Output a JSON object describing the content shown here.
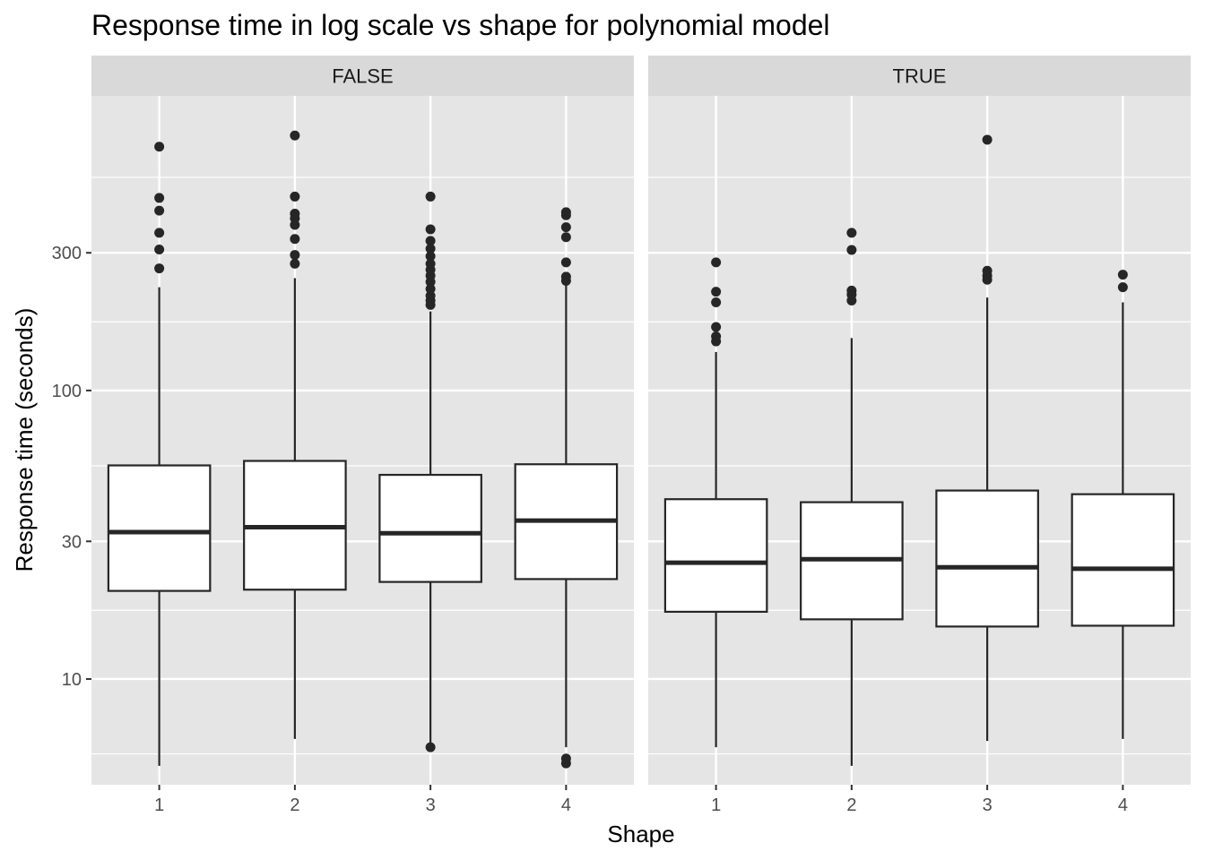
{
  "chart_data": {
    "type": "boxplot",
    "title": "Response time in log scale vs shape for polynomial model",
    "xlabel": "Shape",
    "ylabel": "Response time (seconds)",
    "y_scale": "log10",
    "ylim": [
      4.3,
      1050
    ],
    "y_ticks": [
      10,
      30,
      100,
      300
    ],
    "y_tick_labels": [
      "10",
      "30",
      "100",
      "300"
    ],
    "y_minor_ticks": [
      5.5,
      17.3,
      54.8,
      173,
      548
    ],
    "grid": true,
    "facets": [
      {
        "label": "FALSE",
        "categories": [
          "1",
          "2",
          "3",
          "4"
        ],
        "boxes": [
          {
            "lower_whisker": 5.0,
            "q1": 20.2,
            "median": 32.3,
            "q3": 55.0,
            "upper_whisker": 228,
            "outliers": [
              265,
              308,
              352,
              420,
              465,
              700
            ]
          },
          {
            "lower_whisker": 6.2,
            "q1": 20.4,
            "median": 33.6,
            "q3": 57.0,
            "upper_whisker": 245,
            "outliers": [
              275,
              295,
              335,
              375,
              395,
              410,
              470,
              765
            ]
          },
          {
            "lower_whisker": 5.8,
            "q1": 21.7,
            "median": 32.0,
            "q3": 51.0,
            "upper_whisker": 188,
            "outliers": [
              5.8,
              198,
              205,
              213,
              225,
              238,
              250,
              262,
              275,
              292,
              310,
              330,
              362,
              470
            ]
          },
          {
            "lower_whisker": 5.8,
            "q1": 22.2,
            "median": 35.4,
            "q3": 55.5,
            "upper_whisker": 232,
            "outliers": [
              5.1,
              5.3,
              240,
              248,
              278,
              340,
              368,
              405,
              415
            ]
          }
        ]
      },
      {
        "label": "TRUE",
        "categories": [
          "1",
          "2",
          "3",
          "4"
        ],
        "boxes": [
          {
            "lower_whisker": 5.8,
            "q1": 17.1,
            "median": 25.3,
            "q3": 42.0,
            "upper_whisker": 136,
            "outliers": [
              148,
              154,
              166,
              202,
              220,
              278
            ]
          },
          {
            "lower_whisker": 5.0,
            "q1": 16.1,
            "median": 26.0,
            "q3": 41.0,
            "upper_whisker": 152,
            "outliers": [
              205,
              215,
              222,
              307,
              352
            ]
          },
          {
            "lower_whisker": 6.1,
            "q1": 15.2,
            "median": 24.4,
            "q3": 45.0,
            "upper_whisker": 210,
            "outliers": [
              242,
              250,
              260,
              740
            ]
          },
          {
            "lower_whisker": 6.2,
            "q1": 15.3,
            "median": 24.1,
            "q3": 43.7,
            "upper_whisker": 202,
            "outliers": [
              228,
              252
            ]
          }
        ]
      }
    ]
  },
  "colors": {
    "panel_background": "#e5e5e5",
    "strip_background": "#d9d9d9",
    "grid": "#ffffff",
    "box_fill": "#ffffff",
    "box_outline": "#262626",
    "point": "#262626"
  }
}
